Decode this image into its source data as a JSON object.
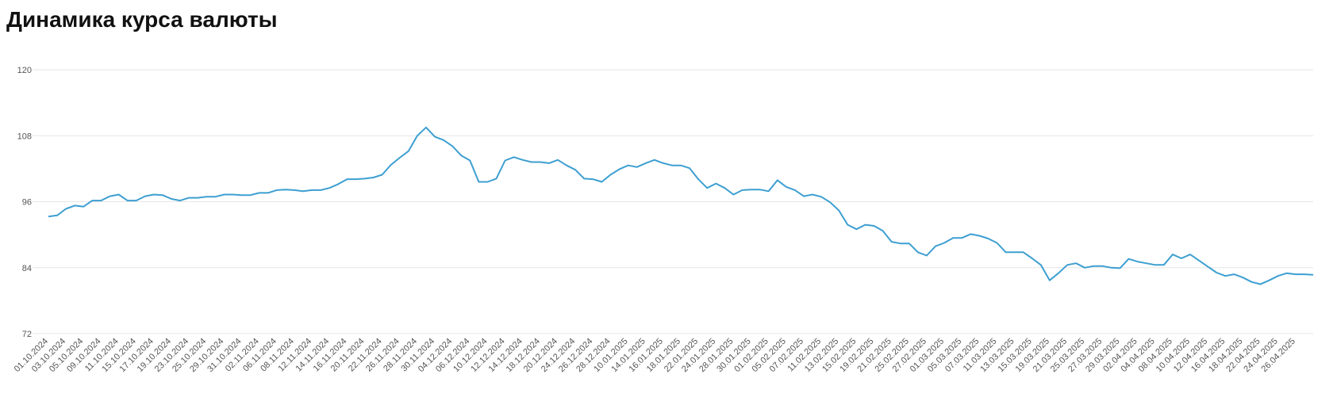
{
  "chart_data": {
    "type": "line",
    "title": "Динамика курса валюты",
    "categories": [
      "01.10.2024",
      null,
      "03.10.2024",
      null,
      "05.10.2024",
      null,
      "09.10.2024",
      null,
      "11.10.2024",
      null,
      "15.10.2024",
      null,
      "17.10.2024",
      null,
      "19.10.2024",
      null,
      "23.10.2024",
      null,
      "25.10.2024",
      null,
      "29.10.2024",
      null,
      "31.10.2024",
      null,
      "02.11.2024",
      null,
      "06.11.2024",
      null,
      "08.11.2024",
      null,
      "12.11.2024",
      null,
      "14.11.2024",
      null,
      "16.11.2024",
      null,
      "20.11.2024",
      null,
      "22.11.2024",
      null,
      "26.11.2024",
      null,
      "28.11.2024",
      null,
      "30.11.2024",
      null,
      "04.12.2024",
      null,
      "06.12.2024",
      null,
      "10.12.2024",
      null,
      "12.12.2024",
      null,
      "14.12.2024",
      null,
      "18.12.2024",
      null,
      "20.12.2024",
      null,
      "24.12.2024",
      null,
      "26.12.2024",
      null,
      "28.12.2024",
      null,
      "10.01.2025",
      null,
      "14.01.2025",
      null,
      "16.01.2025",
      null,
      "18.01.2025",
      null,
      "22.01.2025",
      null,
      "24.01.2025",
      null,
      "28.01.2025",
      null,
      "30.01.2025",
      null,
      "01.02.2025",
      null,
      "05.02.2025",
      null,
      "07.02.2025",
      null,
      "11.02.2025",
      null,
      "13.02.2025",
      null,
      "15.02.2025",
      null,
      "19.02.2025",
      null,
      "21.02.2025",
      null,
      "25.02.2025",
      null,
      "27.02.2025",
      null,
      "01.03.2025",
      null,
      "05.03.2025",
      null,
      "07.03.2025",
      null,
      "11.03.2025",
      null,
      "13.03.2025",
      null,
      "15.03.2025",
      null,
      "19.03.2025",
      null,
      "21.03.2025",
      null,
      "25.03.2025",
      null,
      "27.03.2025",
      null,
      "29.03.2025",
      null,
      "02.04.2025",
      null,
      "04.04.2025",
      null,
      "08.04.2025",
      null,
      "10.04.2025",
      null,
      "12.04.2025",
      null,
      "16.04.2025",
      null,
      "18.04.2025",
      null,
      "22.04.2025",
      null,
      "24.04.2025",
      null,
      "26.04.2025",
      null,
      null
    ],
    "values": [
      93.3,
      93.5,
      94.7,
      95.3,
      95.1,
      96.2,
      96.2,
      97.0,
      97.3,
      96.2,
      96.2,
      97.0,
      97.3,
      97.2,
      96.5,
      96.2,
      96.7,
      96.7,
      96.9,
      96.9,
      97.3,
      97.3,
      97.2,
      97.2,
      97.6,
      97.6,
      98.1,
      98.2,
      98.1,
      97.9,
      98.1,
      98.1,
      98.5,
      99.2,
      100.1,
      100.1,
      100.2,
      100.4,
      100.9,
      102.7,
      104.0,
      105.2,
      108.0,
      109.5,
      107.8,
      107.2,
      106.1,
      104.4,
      103.5,
      99.6,
      99.6,
      100.2,
      103.5,
      104.1,
      103.6,
      103.2,
      103.2,
      103.0,
      103.6,
      102.6,
      101.8,
      100.2,
      100.1,
      99.6,
      100.9,
      101.9,
      102.6,
      102.3,
      103.0,
      103.6,
      103.0,
      102.6,
      102.6,
      102.1,
      100.1,
      98.5,
      99.3,
      98.5,
      97.3,
      98.1,
      98.2,
      98.2,
      97.9,
      99.9,
      98.7,
      98.1,
      97.0,
      97.3,
      96.9,
      95.9,
      94.4,
      91.8,
      91.0,
      91.8,
      91.6,
      90.7,
      88.7,
      88.4,
      88.4,
      86.8,
      86.2,
      87.9,
      88.5,
      89.4,
      89.4,
      90.1,
      89.8,
      89.3,
      88.5,
      86.8,
      86.8,
      86.8,
      85.7,
      84.5,
      81.7,
      83.0,
      84.5,
      84.8,
      84.0,
      84.3,
      84.3,
      84.0,
      83.9,
      85.6,
      85.1,
      84.8,
      84.5,
      84.5,
      86.4,
      85.7,
      86.4,
      85.3,
      84.2,
      83.1,
      82.5,
      82.8,
      82.2,
      81.4,
      81.0,
      81.7,
      82.5,
      83.0,
      82.8,
      82.8,
      82.7
    ],
    "color": "#3d9fd1",
    "ylim": [
      72,
      120
    ],
    "yticks": [
      72,
      84,
      96,
      108,
      120
    ],
    "grid": true
  }
}
